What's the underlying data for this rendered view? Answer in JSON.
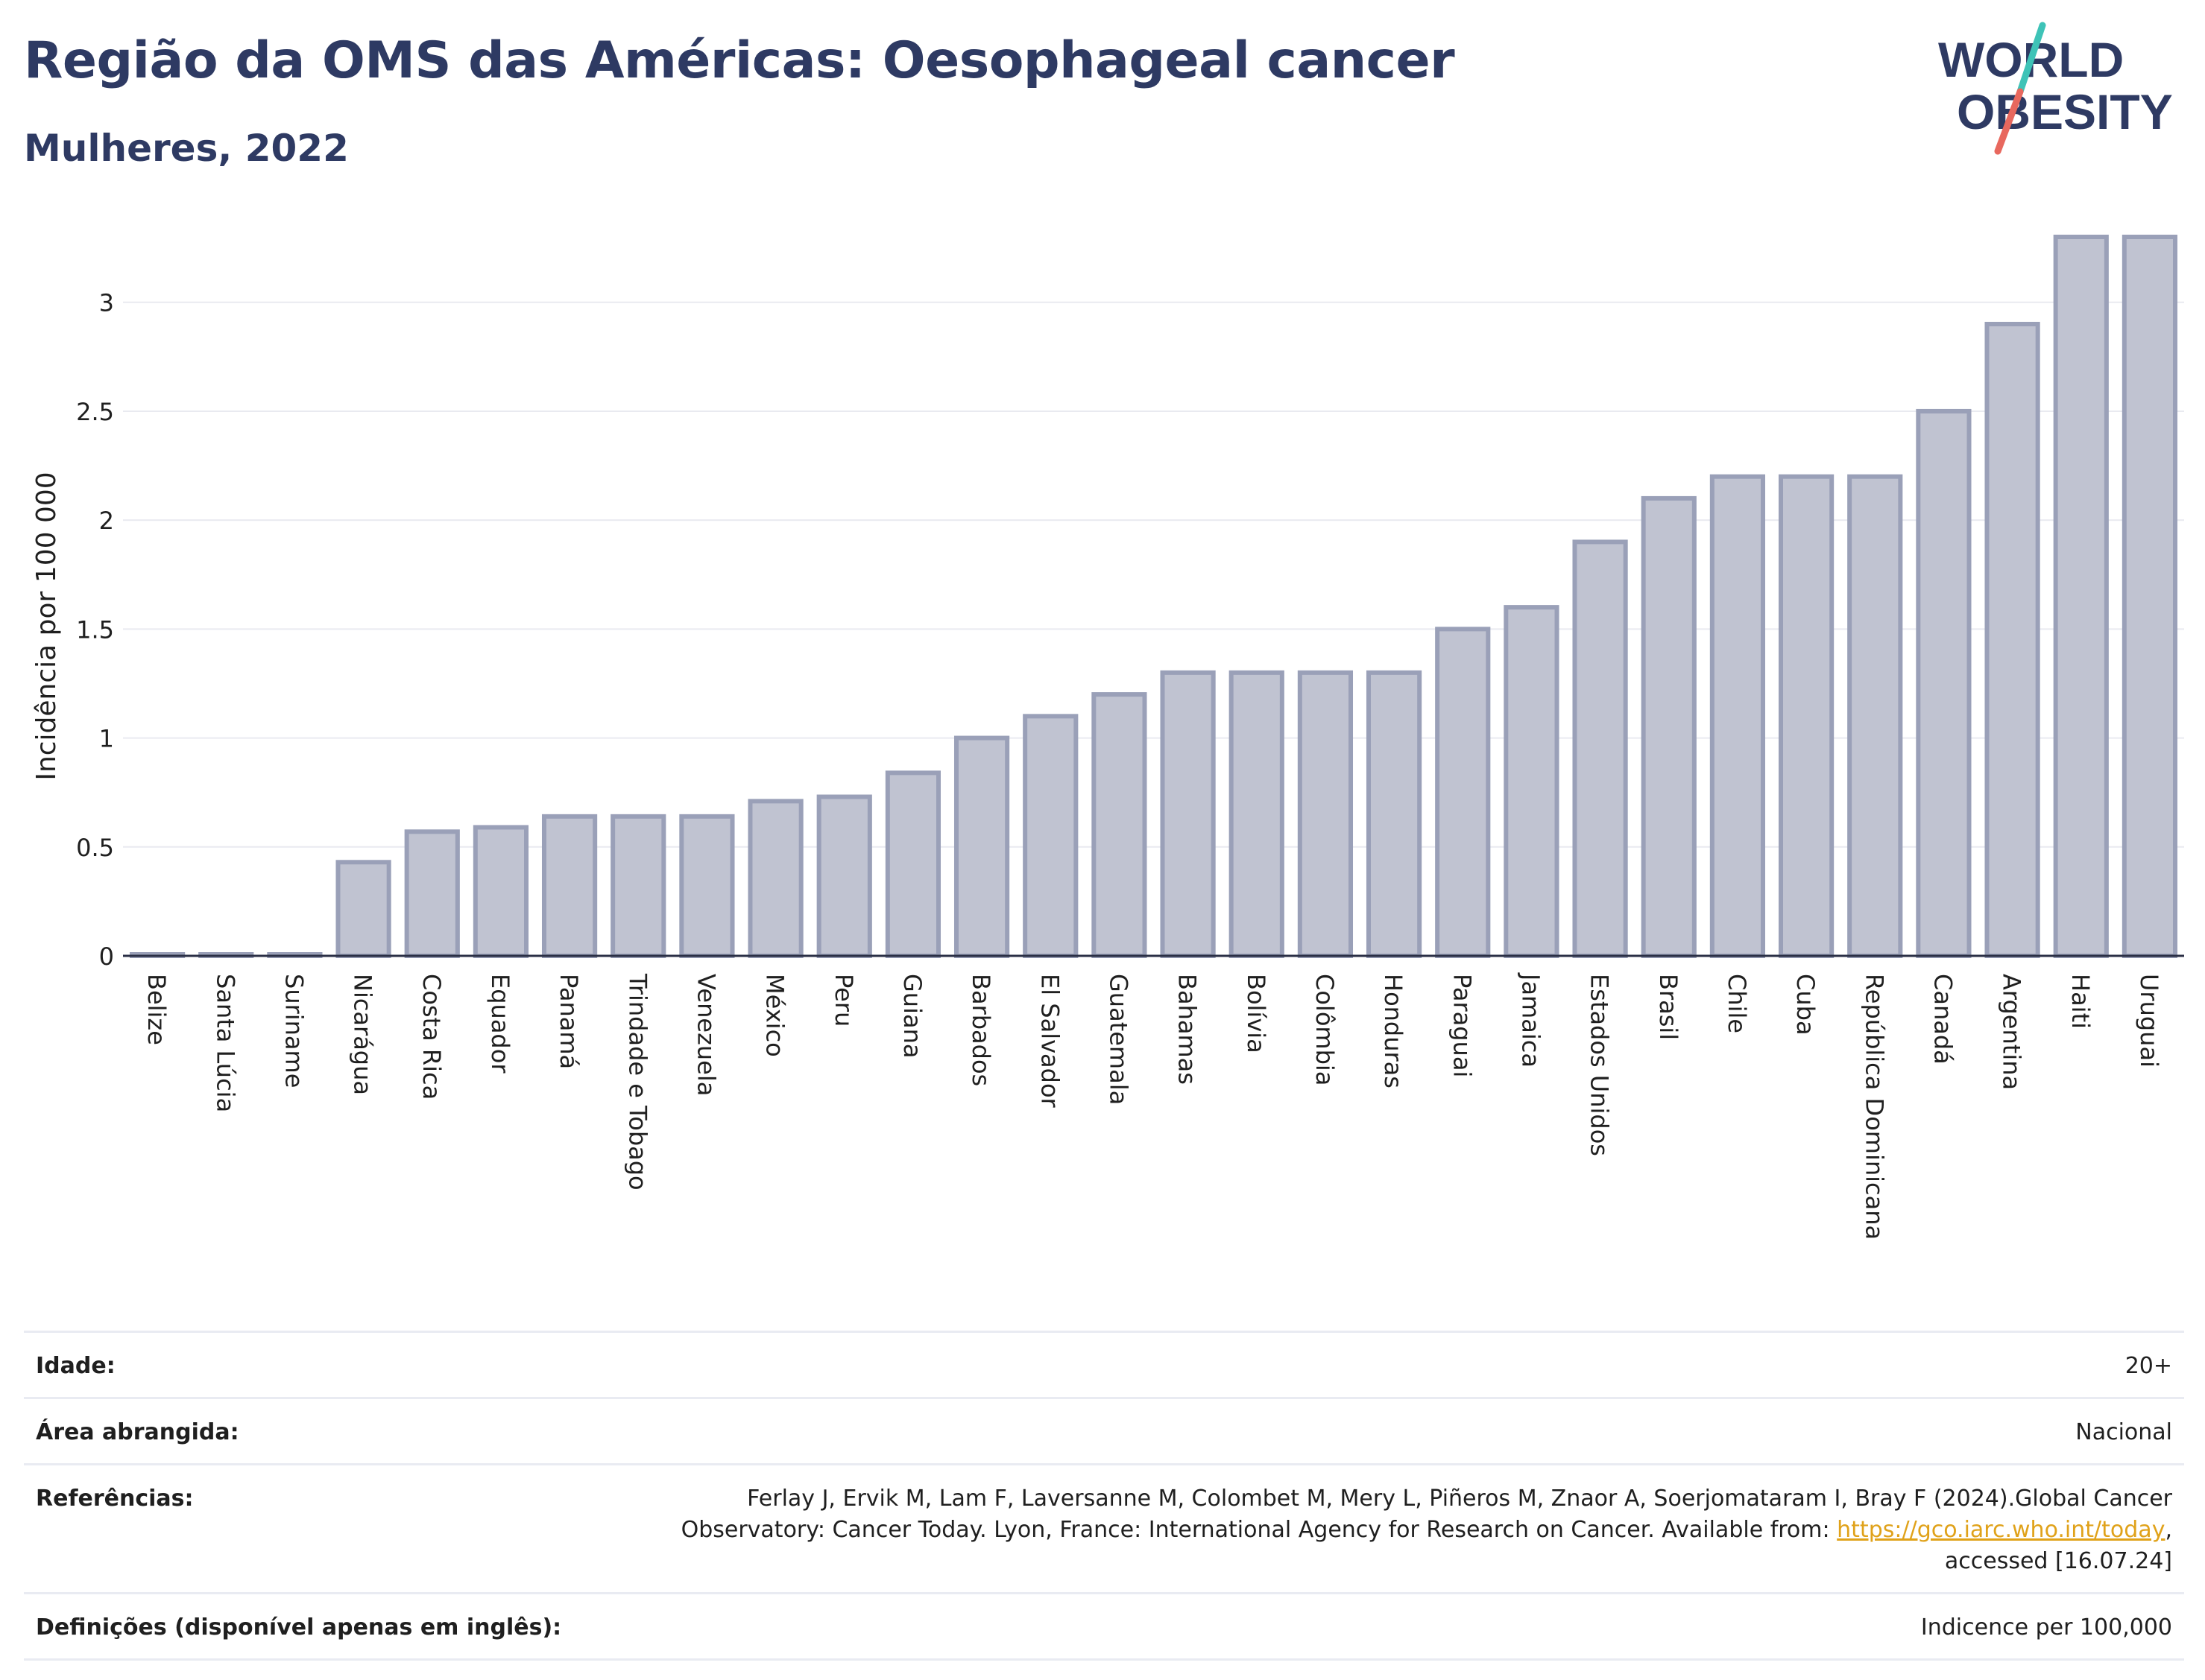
{
  "header": {
    "title": "Região da OMS das Américas: Oesophageal cancer",
    "subtitle": "Mulheres, 2022"
  },
  "logo": {
    "line1": "WORLD",
    "line2": "OBESITY",
    "text_color": "#2e3a63",
    "slash_colors": [
      "#3ec3b7",
      "#e8685e"
    ]
  },
  "chart_data": {
    "type": "bar",
    "ylabel": "Incidência por 100 000",
    "xlabel": "",
    "ylim": [
      0,
      3.3
    ],
    "yticks": [
      0,
      0.5,
      1,
      1.5,
      2,
      2.5,
      3
    ],
    "ytick_labels": [
      "0",
      "0.5",
      "1",
      "1.5",
      "2",
      "2.5",
      "3"
    ],
    "grid": true,
    "bar_fill": "#c0c3d1",
    "bar_stroke": "#9aa0b8",
    "categories": [
      "Belize",
      "Santa Lúcia",
      "Suriname",
      "Nicarágua",
      "Costa Rica",
      "Equador",
      "Panamá",
      "Trindade e Tobago",
      "Venezuela",
      "México",
      "Peru",
      "Guiana",
      "Barbados",
      "El Salvador",
      "Guatemala",
      "Bahamas",
      "Bolívia",
      "Colômbia",
      "Honduras",
      "Paraguai",
      "Jamaica",
      "Estados Unidos",
      "Brasil",
      "Chile",
      "Cuba",
      "República Dominicana",
      "Canadá",
      "Argentina",
      "Haiti",
      "Uruguai"
    ],
    "values": [
      0,
      0,
      0,
      0.43,
      0.57,
      0.59,
      0.64,
      0.64,
      0.64,
      0.71,
      0.73,
      0.84,
      1.0,
      1.1,
      1.2,
      1.3,
      1.3,
      1.3,
      1.3,
      1.5,
      1.6,
      1.9,
      2.1,
      2.2,
      2.2,
      2.2,
      2.5,
      2.9,
      3.3,
      3.3
    ]
  },
  "info": {
    "age_label": "Idade:",
    "age_value": "20+",
    "area_label": "Área abrangida:",
    "area_value": "Nacional",
    "ref_label": "Referências:",
    "ref_text_1": "Ferlay J, Ervik M, Lam F, Laversanne M, Colombet M, Mery L, Piñeros M, Znaor A, Soerjomataram I, Bray F (2024).Global Cancer Observatory: Cancer Today. Lyon, France: International Agency for Research on Cancer. Available from: ",
    "ref_link": "https://gco.iarc.who.int/today",
    "ref_text_2": ", accessed [16.07.24]",
    "def_label": "Definições (disponível apenas em inglês):",
    "def_value": "Indicence per 100,000"
  }
}
